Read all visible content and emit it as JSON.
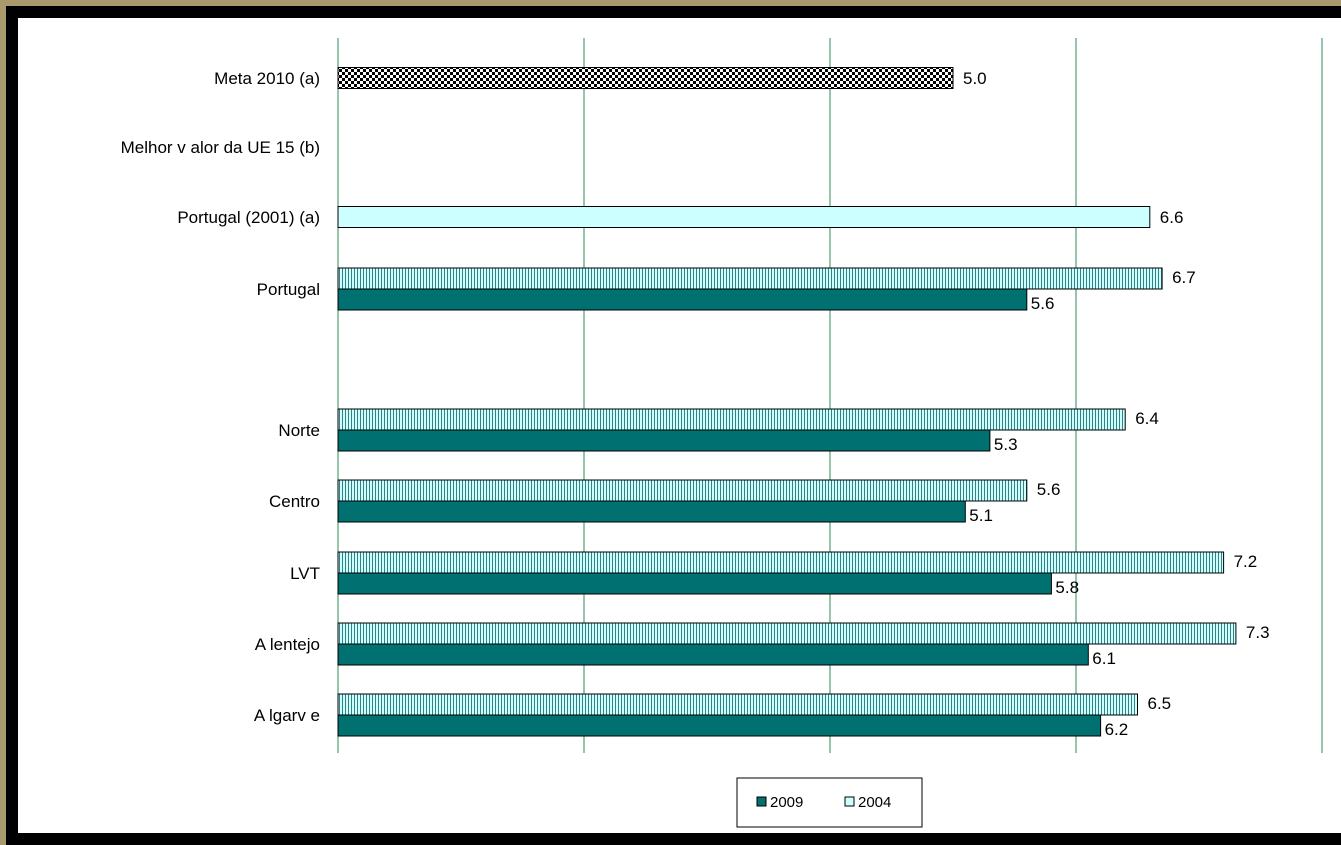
{
  "chart_data": {
    "type": "bar",
    "orientation": "horizontal",
    "categories": [
      "Meta 2010 (a)",
      "Melhor v alor da UE 15 (b)",
      "Portugal (2001) (a)",
      "Portugal",
      "Norte",
      "Centro",
      "LVT",
      "A lentejo",
      "A lgarv e"
    ],
    "series": [
      {
        "name": "2004",
        "color": "#ccffff",
        "pattern": "vertical-stripes",
        "values": [
          null,
          null,
          6.6,
          6.7,
          6.4,
          5.6,
          7.2,
          7.3,
          6.5
        ],
        "labels": [
          "",
          "",
          "6.6",
          "6.7",
          "6.4",
          "5.6",
          "7.2",
          "7.3",
          "6.5"
        ]
      },
      {
        "name": "2009",
        "color": "#007070",
        "pattern": "solid",
        "values": [
          null,
          null,
          null,
          5.6,
          5.3,
          5.1,
          5.8,
          6.1,
          6.2
        ],
        "labels": [
          "",
          "",
          "",
          "5.6",
          "5.3",
          "5.1",
          "5.8",
          "6.1",
          "6.2"
        ]
      }
    ],
    "special_bars": [
      {
        "category": "Meta 2010 (a)",
        "value": 5.0,
        "label": "5.0",
        "pattern": "checkerboard"
      },
      {
        "category": "Portugal (2001) (a)",
        "value": 6.6,
        "label": "6.6",
        "pattern": "solid-light",
        "color": "#ccffff"
      }
    ],
    "xlim": [
      0,
      8
    ],
    "gridlines": [
      0,
      2,
      4,
      6,
      8
    ],
    "grid": true,
    "grid_color": "#2e8b57",
    "show_axis_ticks": false,
    "legend": {
      "position": "bottom-center",
      "entries": [
        {
          "name": "2009",
          "color": "#007070"
        },
        {
          "name": "2004",
          "color": "#ccffff"
        }
      ]
    },
    "title": "",
    "xlabel": "",
    "ylabel": ""
  }
}
